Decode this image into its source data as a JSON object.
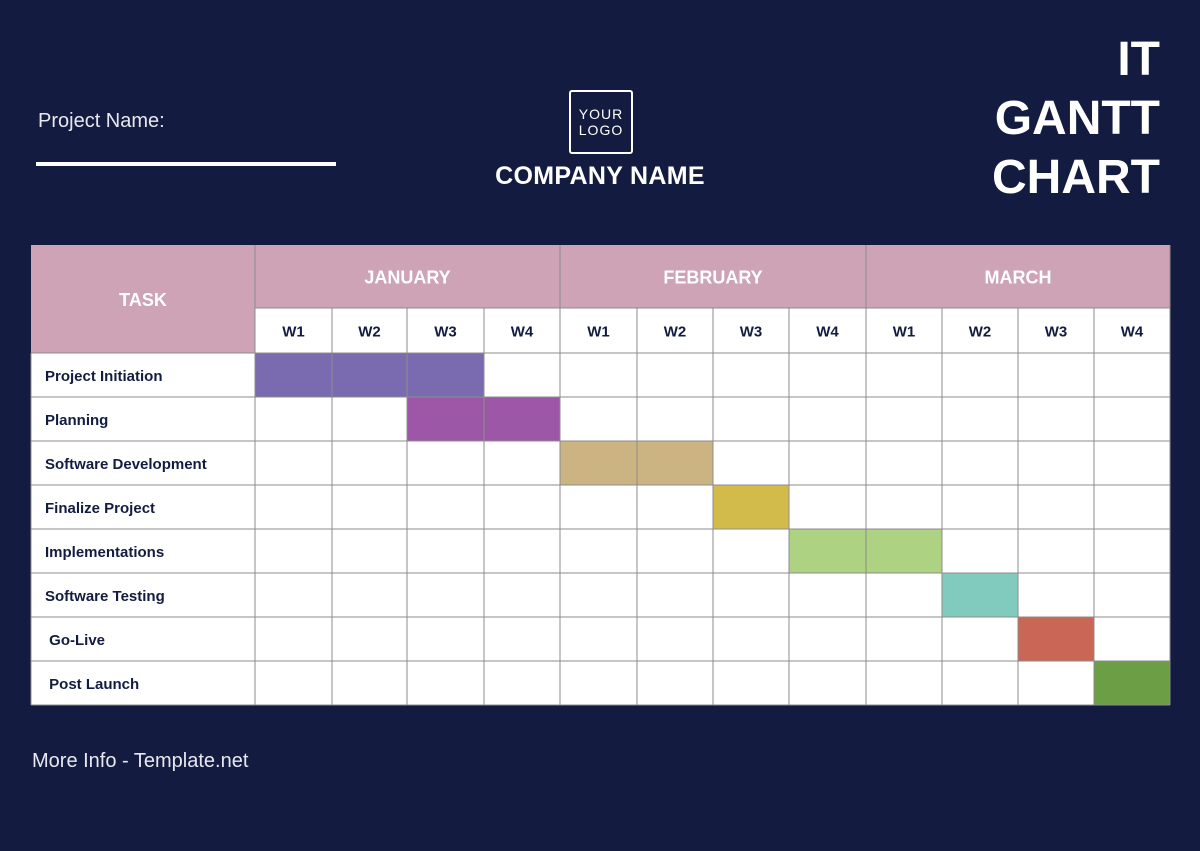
{
  "header": {
    "project_label": "Project Name:",
    "logo_line1": "YOUR",
    "logo_line2": "LOGO",
    "company_name": "COMPANY NAME",
    "title_lines": [
      "IT",
      "GANTT",
      "CHART"
    ]
  },
  "footer": {
    "info": "More Info - Template.net"
  },
  "colors": {
    "background": "#131c40",
    "header_fill": "#cda3b5",
    "grid_line": "#8c8c8c",
    "task_text": "#131c40"
  },
  "chart_data": {
    "type": "gantt",
    "task_header": "TASK",
    "months": [
      "JANUARY",
      "FEBRUARY",
      "MARCH"
    ],
    "weeks": [
      "W1",
      "W2",
      "W3",
      "W4"
    ],
    "tasks": [
      {
        "name": "Project Initiation",
        "start": 0,
        "span": 3,
        "color": "#7a6bb0"
      },
      {
        "name": "Planning",
        "start": 2,
        "span": 2,
        "color": "#9c58a6"
      },
      {
        "name": "Software Development",
        "start": 4,
        "span": 2,
        "color": "#cbb382"
      },
      {
        "name": "Finalize Project",
        "start": 6,
        "span": 1,
        "color": "#d3bb4b"
      },
      {
        "name": "Implementations",
        "start": 7,
        "span": 2,
        "color": "#add281"
      },
      {
        "name": "Software Testing",
        "start": 9,
        "span": 1,
        "color": "#80cbbd"
      },
      {
        "name": " Go-Live",
        "start": 10,
        "span": 1,
        "color": "#c96655"
      },
      {
        "name": " Post Launch",
        "start": 11,
        "span": 1,
        "color": "#6b9e45"
      }
    ]
  }
}
